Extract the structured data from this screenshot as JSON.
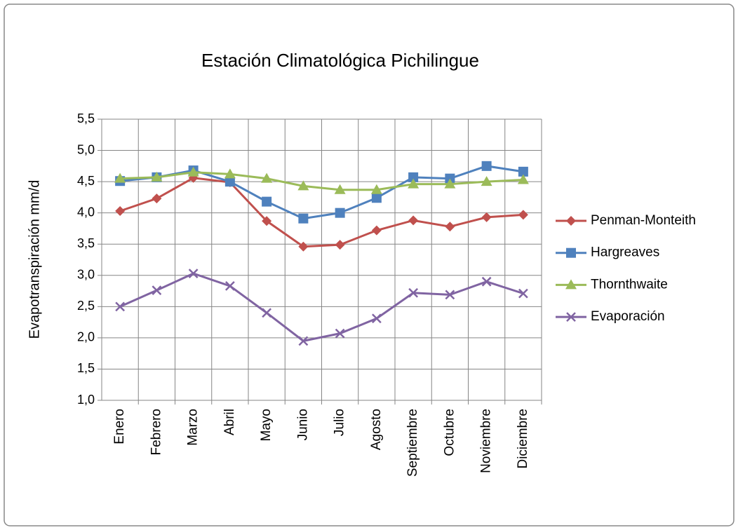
{
  "chart_data": {
    "type": "line",
    "title": "Estación Climatológica Pichilingue",
    "y_label": "Evapotranspiración  mm/d",
    "categories": [
      "Enero",
      "Febrero",
      "Marzo",
      "Abril",
      "Mayo",
      "Junio",
      "Julio",
      "Agosto",
      "Septiembre",
      "Octubre",
      "Noviembre",
      "Diciembre"
    ],
    "series": [
      {
        "name": "Penman-Monteith",
        "color": "#c0504d",
        "marker": "diamond",
        "values": [
          4.03,
          4.23,
          4.56,
          4.49,
          3.87,
          3.46,
          3.49,
          3.72,
          3.88,
          3.78,
          3.93,
          3.97
        ]
      },
      {
        "name": "Hargreaves",
        "color": "#4f81bd",
        "marker": "square",
        "values": [
          4.51,
          4.57,
          4.68,
          4.5,
          4.18,
          3.91,
          4.0,
          4.24,
          4.57,
          4.55,
          4.75,
          4.66
        ]
      },
      {
        "name": "Thornthwaite",
        "color": "#9bbb59",
        "marker": "triangle",
        "values": [
          4.55,
          4.57,
          4.65,
          4.62,
          4.55,
          4.43,
          4.37,
          4.37,
          4.46,
          4.46,
          4.5,
          4.53
        ]
      },
      {
        "name": "Evaporación",
        "color": "#8064a2",
        "marker": "x",
        "values": [
          2.5,
          2.76,
          3.03,
          2.83,
          2.4,
          1.95,
          2.07,
          2.31,
          2.72,
          2.69,
          2.9,
          2.71
        ]
      }
    ],
    "ylim": [
      1.0,
      5.5
    ],
    "yticks": [
      {
        "value": 1.0,
        "label": "1,0"
      },
      {
        "value": 1.5,
        "label": "1,5"
      },
      {
        "value": 2.0,
        "label": "2,0"
      },
      {
        "value": 2.5,
        "label": "2,5"
      },
      {
        "value": 3.0,
        "label": "3,0"
      },
      {
        "value": 3.5,
        "label": "3,5"
      },
      {
        "value": 4.0,
        "label": "4,0"
      },
      {
        "value": 4.5,
        "label": "4,5"
      },
      {
        "value": 5.0,
        "label": "5,0"
      },
      {
        "value": 5.5,
        "label": "5,5"
      }
    ],
    "grid": true,
    "legend": "right"
  }
}
